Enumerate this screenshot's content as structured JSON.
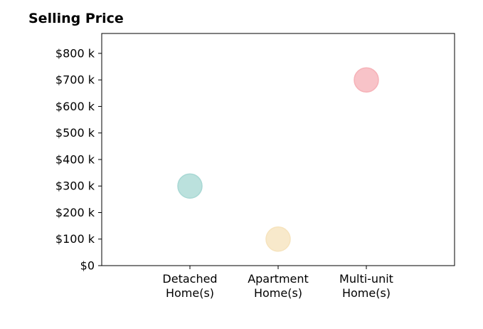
{
  "chart_data": {
    "type": "scatter",
    "title": "Selling Price",
    "xlabel": "",
    "ylabel": "",
    "categories": [
      "Detached\nHome(s)",
      "Apartment\nHome(s)",
      "Multi-unit\nHome(s)"
    ],
    "values": [
      300000,
      100000,
      700000
    ],
    "colors": [
      "#a8d8d4",
      "#f6e3bd",
      "#f6b2b8"
    ],
    "ylim": [
      0,
      875000
    ],
    "y_ticks": [
      0,
      100000,
      200000,
      300000,
      400000,
      500000,
      600000,
      700000,
      800000
    ],
    "y_tick_labels": [
      "$0",
      "$100 k",
      "$200 k",
      "$300 k",
      "$400 k",
      "$500 k",
      "$600 k",
      "$700 k",
      "$800 k"
    ],
    "grid": false,
    "legend": "none"
  }
}
